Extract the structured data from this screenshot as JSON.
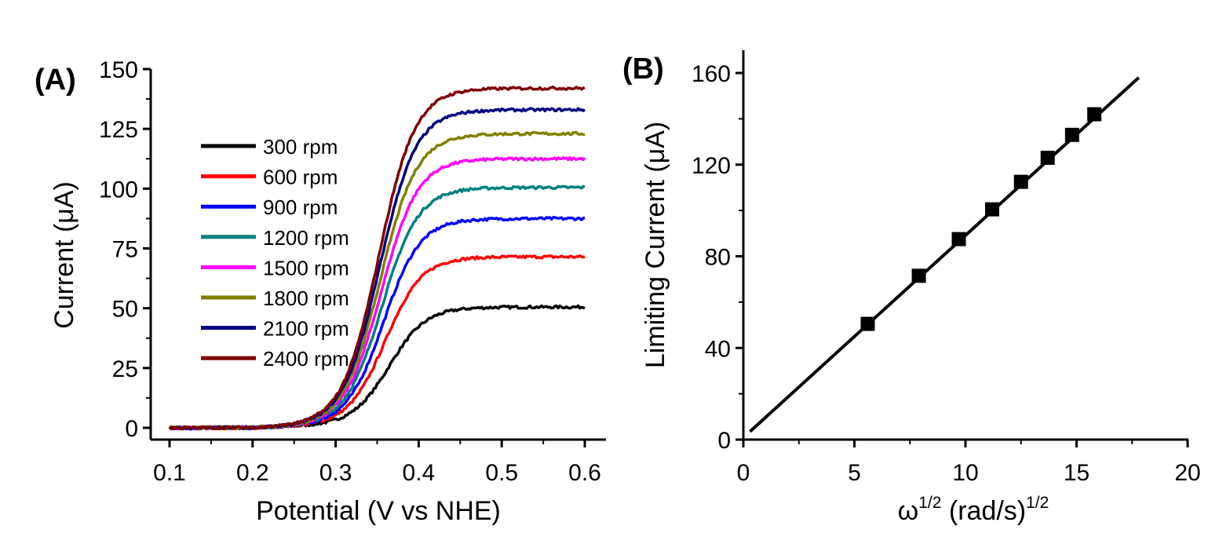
{
  "chart_data": [
    {
      "panel": "(A)",
      "type": "line",
      "xlabel": "Potential (V vs NHE)",
      "ylabel": "Current (μA)",
      "xlim": [
        0.08,
        0.62
      ],
      "ylim": [
        -5,
        150
      ],
      "xticks": [
        0.1,
        0.2,
        0.3,
        0.4,
        0.5,
        0.6
      ],
      "xtick_labels": [
        "0.1",
        "0.2",
        "0.3",
        "0.4",
        "0.5",
        "0.6"
      ],
      "yticks": [
        0,
        25,
        50,
        75,
        100,
        125,
        150
      ],
      "ytick_labels": [
        "0",
        "25",
        "50",
        "75",
        "100",
        "125",
        "150"
      ],
      "legend_position": "upper-left inside",
      "curve_model": "sigmoid",
      "series": [
        {
          "name": "300 rpm",
          "color": "#000000",
          "limiting": 50.5,
          "midpoint": 0.365,
          "width": 0.022
        },
        {
          "name": "600 rpm",
          "color": "#ff0000",
          "limiting": 71.5,
          "midpoint": 0.36,
          "width": 0.022
        },
        {
          "name": "900 rpm",
          "color": "#0000ff",
          "limiting": 87.5,
          "midpoint": 0.358,
          "width": 0.022
        },
        {
          "name": "1200 rpm",
          "color": "#008080",
          "limiting": 100.5,
          "midpoint": 0.356,
          "width": 0.022
        },
        {
          "name": "1500 rpm",
          "color": "#ff00ff",
          "limiting": 112.5,
          "midpoint": 0.355,
          "width": 0.022
        },
        {
          "name": "1800 rpm",
          "color": "#808000",
          "limiting": 123,
          "midpoint": 0.354,
          "width": 0.022
        },
        {
          "name": "2100 rpm",
          "color": "#000080",
          "limiting": 133,
          "midpoint": 0.353,
          "width": 0.022
        },
        {
          "name": "2400 rpm",
          "color": "#800000",
          "limiting": 142,
          "midpoint": 0.352,
          "width": 0.022
        }
      ]
    },
    {
      "panel": "(B)",
      "type": "scatter",
      "xlabel_base": "ω",
      "xlabel_sup": "1/2",
      "xlabel_mid": " (rad/s)",
      "xlabel_sup2": "1/2",
      "ylabel": "Limiting Current (μA)",
      "xlim": [
        0,
        20
      ],
      "ylim": [
        0,
        170
      ],
      "xticks": [
        0,
        5,
        10,
        15,
        20
      ],
      "xtick_labels": [
        "0",
        "5",
        "10",
        "15",
        "20"
      ],
      "yticks": [
        0,
        40,
        80,
        120,
        160
      ],
      "ytick_labels": [
        "0",
        "40",
        "80",
        "120",
        "160"
      ],
      "points": {
        "x": [
          5.6,
          7.9,
          9.7,
          11.2,
          12.5,
          13.7,
          14.8,
          15.8
        ],
        "y": [
          50.5,
          71.5,
          87.5,
          100.5,
          112.5,
          123,
          133,
          142
        ]
      },
      "fit_line": {
        "x": [
          0.3,
          17.8
        ],
        "y": [
          3.5,
          158
        ]
      },
      "color": "#000000"
    }
  ]
}
